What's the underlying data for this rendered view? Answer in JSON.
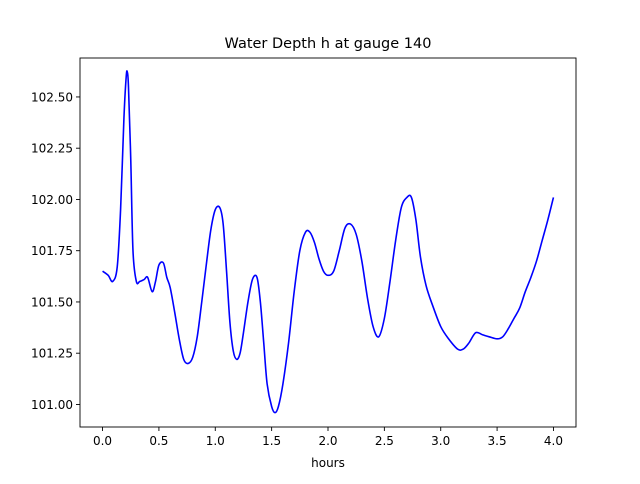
{
  "chart_data": {
    "type": "line",
    "title": "Water Depth h at gauge 140",
    "xlabel": "hours",
    "ylabel": "",
    "xlim": [
      -0.2,
      4.2
    ],
    "ylim": [
      100.89,
      102.69
    ],
    "grid": false,
    "xticks": [
      0.0,
      0.5,
      1.0,
      1.5,
      2.0,
      2.5,
      3.0,
      3.5,
      4.0
    ],
    "xtick_labels": [
      "0.0",
      "0.5",
      "1.0",
      "1.5",
      "2.0",
      "2.5",
      "3.0",
      "3.5",
      "4.0"
    ],
    "yticks": [
      101.0,
      101.25,
      101.5,
      101.75,
      102.0,
      102.25,
      102.5
    ],
    "ytick_labels": [
      "101.00",
      "101.25",
      "101.50",
      "101.75",
      "102.00",
      "102.25",
      "102.50"
    ],
    "series": [
      {
        "name": "",
        "color": "#0000ff",
        "x": [
          0.0,
          0.05,
          0.09,
          0.13,
          0.16,
          0.19,
          0.21,
          0.22,
          0.23,
          0.25,
          0.27,
          0.3,
          0.33,
          0.37,
          0.4,
          0.44,
          0.47,
          0.5,
          0.54,
          0.57,
          0.6,
          0.64,
          0.68,
          0.72,
          0.76,
          0.8,
          0.84,
          0.88,
          0.92,
          0.96,
          1.0,
          1.04,
          1.07,
          1.1,
          1.13,
          1.16,
          1.19,
          1.22,
          1.25,
          1.29,
          1.33,
          1.37,
          1.4,
          1.43,
          1.46,
          1.5,
          1.53,
          1.56,
          1.6,
          1.65,
          1.7,
          1.75,
          1.8,
          1.84,
          1.88,
          1.92,
          1.96,
          2.0,
          2.05,
          2.1,
          2.15,
          2.2,
          2.25,
          2.3,
          2.35,
          2.4,
          2.45,
          2.5,
          2.55,
          2.6,
          2.65,
          2.7,
          2.74,
          2.78,
          2.82,
          2.87,
          2.93,
          3.0,
          3.07,
          3.15,
          3.2,
          3.25,
          3.31,
          3.37,
          3.43,
          3.5,
          3.55,
          3.6,
          3.65,
          3.7,
          3.75,
          3.8,
          3.85,
          3.9,
          3.95,
          4.0
        ],
        "y": [
          101.65,
          101.63,
          101.6,
          101.67,
          101.95,
          102.4,
          102.6,
          102.62,
          102.55,
          102.2,
          101.75,
          101.6,
          101.6,
          101.61,
          101.62,
          101.55,
          101.6,
          101.68,
          101.69,
          101.62,
          101.57,
          101.45,
          101.32,
          101.22,
          101.2,
          101.23,
          101.33,
          101.5,
          101.68,
          101.85,
          101.95,
          101.96,
          101.88,
          101.65,
          101.4,
          101.26,
          101.22,
          101.25,
          101.35,
          101.5,
          101.61,
          101.62,
          101.5,
          101.3,
          101.1,
          100.99,
          100.96,
          100.99,
          101.1,
          101.3,
          101.55,
          101.75,
          101.84,
          101.84,
          101.79,
          101.71,
          101.65,
          101.63,
          101.65,
          101.75,
          101.86,
          101.88,
          101.83,
          101.7,
          101.52,
          101.38,
          101.33,
          101.42,
          101.6,
          101.8,
          101.96,
          102.01,
          102.01,
          101.9,
          101.72,
          101.58,
          101.48,
          101.38,
          101.32,
          101.27,
          101.27,
          101.3,
          101.35,
          101.34,
          101.33,
          101.32,
          101.33,
          101.37,
          101.42,
          101.47,
          101.55,
          101.62,
          101.7,
          101.8,
          101.9,
          102.01
        ]
      }
    ]
  }
}
